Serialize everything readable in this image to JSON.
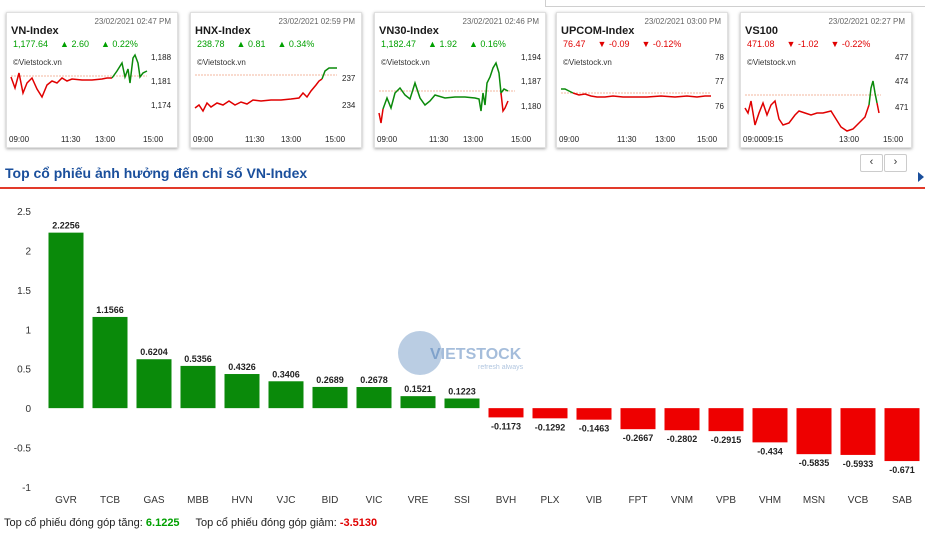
{
  "mini_charts": [
    {
      "name": "VN-Index",
      "timestamp": "23/02/2021 02:47 PM",
      "value": "1,177.64",
      "change": "▲ 2.60",
      "pct": "▲ 0.22%",
      "dir": "up",
      "watermark": "©Vietstock.vn",
      "y_ticks": [
        "1,188",
        "1,181",
        "1,174"
      ],
      "x_ticks": [
        "09:00",
        "11:30",
        "13:00",
        "15:00"
      ]
    },
    {
      "name": "HNX-Index",
      "timestamp": "23/02/2021 02:59 PM",
      "value": "238.78",
      "change": "▲ 0.81",
      "pct": "▲ 0.34%",
      "dir": "up",
      "watermark": "©Vietstock.vn",
      "y_ticks": [
        "237",
        "234"
      ],
      "x_ticks": [
        "09:00",
        "11:30",
        "13:00",
        "15:00"
      ]
    },
    {
      "name": "VN30-Index",
      "timestamp": "23/02/2021 02:46 PM",
      "value": "1,182.47",
      "change": "▲ 1.92",
      "pct": "▲ 0.16%",
      "dir": "up",
      "watermark": "©Vietstock.vn",
      "y_ticks": [
        "1,194",
        "1,187",
        "1,180"
      ],
      "x_ticks": [
        "09:00",
        "11:30",
        "13:00",
        "15:00"
      ]
    },
    {
      "name": "UPCOM-Index",
      "timestamp": "23/02/2021 03:00 PM",
      "value": "76.47",
      "change": "▼ -0.09",
      "pct": "▼ -0.12%",
      "dir": "dn",
      "watermark": "©Vietstock.vn",
      "y_ticks": [
        "78",
        "77",
        "76"
      ],
      "x_ticks": [
        "09:00",
        "11:30",
        "13:00",
        "15:00"
      ]
    },
    {
      "name": "VS100",
      "timestamp": "23/02/2021 02:27 PM",
      "value": "471.08",
      "change": "▼ -1.02",
      "pct": "▼ -0.22%",
      "dir": "dn",
      "watermark": "©Vietstock.vn",
      "y_ticks": [
        "477",
        "474",
        "471"
      ],
      "x_ticks": [
        "09:00",
        "09:15",
        "13:00",
        "15:00"
      ]
    }
  ],
  "nav": {
    "prev": "‹",
    "next": "›"
  },
  "section_title": "Top cổ phiếu ảnh hưởng đến chỉ số VN-Index",
  "colors": {
    "up": "#0a8a0a",
    "down": "#ee0000",
    "title": "#1a4f9c",
    "rule": "#e23a2a"
  },
  "watermark": {
    "brand": "VIETSTOCK",
    "tagline": "refresh always"
  },
  "chart_data": {
    "type": "bar",
    "categories": [
      "GVR",
      "TCB",
      "GAS",
      "MBB",
      "HVN",
      "VJC",
      "BID",
      "VIC",
      "VRE",
      "SSI",
      "BVH",
      "PLX",
      "VIB",
      "FPT",
      "VNM",
      "VPB",
      "VHM",
      "MSN",
      "VCB",
      "SAB"
    ],
    "values": [
      2.2256,
      1.1566,
      0.6204,
      0.5356,
      0.4326,
      0.3406,
      0.2689,
      0.2678,
      0.1521,
      0.1223,
      -0.1173,
      -0.1292,
      -0.1463,
      -0.2667,
      -0.2802,
      -0.2915,
      -0.434,
      -0.5835,
      -0.5933,
      -0.671
    ],
    "labels": [
      "2.2256",
      "1.1566",
      "0.6204",
      "0.5356",
      "0.4326",
      "0.3406",
      "0.2689",
      "0.2678",
      "0.1521",
      "0.1223",
      "-0.1173",
      "-0.1292",
      "-0.1463",
      "-0.2667",
      "-0.2802",
      "-0.2915",
      "-0.434",
      "-0.5835",
      "-0.5933",
      "-0.671"
    ],
    "y_ticks": [
      "2.5",
      "2",
      "1.5",
      "1",
      "0.5",
      "0",
      "-0.5",
      "-1"
    ],
    "ylim": [
      -1,
      2.5
    ],
    "title": "Top cổ phiếu ảnh hưởng đến chỉ số VN-Index",
    "xlabel": "",
    "ylabel": ""
  },
  "summary": {
    "up_label": "Top cổ phiếu đóng góp tăng:",
    "up_value": "6.1225",
    "down_label": "Top cổ phiếu đóng góp giảm:",
    "down_value": "-3.5130"
  }
}
